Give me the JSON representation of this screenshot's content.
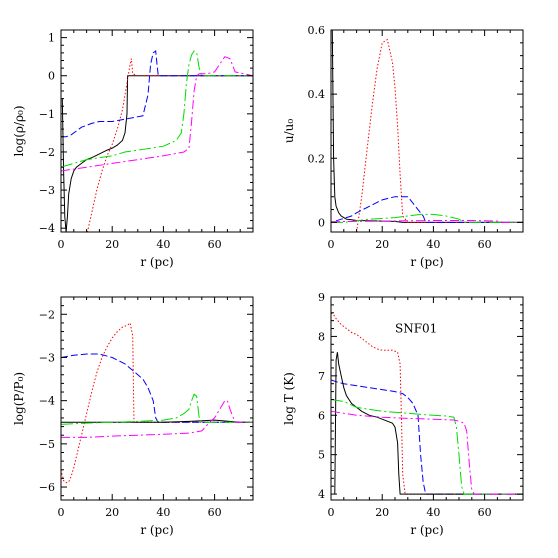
{
  "chart_data": [
    {
      "type": "line",
      "xlabel": "r (pc)",
      "ylabel": "log(ρ/ρ₀)",
      "xlim": [
        0,
        75
      ],
      "ylim": [
        -4.1,
        1.2
      ],
      "xticks": [
        0,
        20,
        40,
        60
      ],
      "xtick_labels": [
        "0",
        "20",
        "40",
        "60"
      ],
      "yticks": [
        -4,
        -3,
        -2,
        -1,
        0,
        1
      ],
      "ytick_labels": [
        "−4",
        "−3",
        "−2",
        "−1",
        "0",
        "1"
      ],
      "annotation": "",
      "series": [
        {
          "color": "#000000",
          "dash": "",
          "x": [
            0.5,
            1,
            1.5,
            2,
            2.5,
            3,
            4,
            5,
            6,
            8,
            10,
            12,
            15,
            18,
            20,
            22,
            24,
            25,
            25.8,
            26,
            30,
            40,
            50,
            60,
            75
          ],
          "y": [
            -0.6,
            -2.5,
            -3.7,
            -4.1,
            -3.7,
            -3.1,
            -2.7,
            -2.5,
            -2.4,
            -2.3,
            -2.2,
            -2.15,
            -2.05,
            -1.95,
            -1.9,
            -1.82,
            -1.7,
            -1.5,
            -1.0,
            0.0,
            0.0,
            0.0,
            0.0,
            0.0,
            0.0
          ]
        },
        {
          "color": "#ff0000",
          "dash": "1.5,2",
          "x": [
            10,
            12,
            14,
            16,
            18,
            20,
            22,
            24,
            25,
            26,
            27,
            27.5,
            28,
            30,
            40,
            60,
            75
          ],
          "y": [
            -4.2,
            -3.6,
            -3.0,
            -2.5,
            -2.1,
            -1.8,
            -1.4,
            -0.9,
            -0.5,
            -0.1,
            0.3,
            0.45,
            0.05,
            0.0,
            0.0,
            0.0,
            0.0
          ]
        },
        {
          "color": "#0000ff",
          "dash": "7,3",
          "x": [
            0,
            2,
            4,
            6,
            8,
            10,
            12,
            15,
            18,
            20,
            24,
            28,
            32,
            34,
            35,
            36,
            37,
            37.5,
            38,
            40,
            50,
            60,
            75
          ],
          "y": [
            -1.6,
            -1.6,
            -1.55,
            -1.45,
            -1.35,
            -1.3,
            -1.25,
            -1.2,
            -1.2,
            -1.2,
            -1.15,
            -1.1,
            -1.05,
            -0.5,
            0.3,
            0.6,
            0.65,
            0.3,
            0.0,
            0.0,
            0.0,
            0.0,
            0.0
          ]
        },
        {
          "color": "#00dd00",
          "dash": "12,3,2,3",
          "x": [
            0,
            5,
            10,
            15,
            20,
            25,
            30,
            35,
            40,
            45,
            47,
            48,
            49,
            50,
            51,
            52,
            53,
            54,
            55,
            60,
            75
          ],
          "y": [
            -2.4,
            -2.3,
            -2.2,
            -2.15,
            -2.1,
            -2.0,
            -1.95,
            -1.9,
            -1.85,
            -1.7,
            -1.5,
            -1.0,
            -0.2,
            0.3,
            0.55,
            0.65,
            0.6,
            0.2,
            0.0,
            0.0,
            0.0
          ]
        },
        {
          "color": "#ff00ff",
          "dash": "9,3,2,3",
          "x": [
            0,
            10,
            20,
            30,
            40,
            48,
            50,
            51,
            52,
            53,
            54,
            55,
            57,
            60,
            62,
            64,
            66,
            68,
            75
          ],
          "y": [
            -2.5,
            -2.4,
            -2.3,
            -2.2,
            -2.1,
            -2.0,
            -1.9,
            -1.2,
            -0.4,
            0.0,
            0.05,
            0.05,
            0.05,
            0.1,
            0.3,
            0.5,
            0.45,
            0.1,
            0.0
          ]
        }
      ]
    },
    {
      "type": "line",
      "xlabel": "r (pc)",
      "ylabel": "u/u₀",
      "xlim": [
        0,
        75
      ],
      "ylim": [
        -0.03,
        0.6
      ],
      "xticks": [
        0,
        20,
        40,
        60
      ],
      "xtick_labels": [
        "0",
        "20",
        "40",
        "60"
      ],
      "yticks": [
        0,
        0.2,
        0.4,
        0.6
      ],
      "ytick_labels": [
        "0",
        "0.2",
        "0.4",
        "0.6"
      ],
      "annotation": "",
      "series": [
        {
          "color": "#000000",
          "dash": "",
          "x": [
            0.5,
            1,
            1.5,
            2,
            2.5,
            3,
            4,
            5,
            6,
            8,
            10,
            15,
            20,
            25,
            26,
            28,
            30,
            40,
            50,
            60,
            75
          ],
          "y": [
            0.6,
            0.2,
            0.08,
            0.05,
            0.04,
            0.03,
            0.02,
            0.015,
            0.01,
            0.008,
            0.006,
            0.005,
            0.004,
            0.003,
            0.002,
            0.0,
            0.0,
            0.0,
            0.0,
            0.0,
            0.0
          ]
        },
        {
          "color": "#ff0000",
          "dash": "1.5,2",
          "x": [
            10,
            12,
            14,
            16,
            18,
            20,
            22,
            24,
            25,
            26,
            27,
            28,
            30,
            40,
            75
          ],
          "y": [
            -0.03,
            0.08,
            0.22,
            0.36,
            0.48,
            0.56,
            0.57,
            0.5,
            0.42,
            0.3,
            0.15,
            0.02,
            0.0,
            0.0,
            0.0
          ]
        },
        {
          "color": "#0000ff",
          "dash": "7,3",
          "x": [
            2,
            4,
            6,
            8,
            10,
            15,
            20,
            25,
            30,
            32,
            34,
            36,
            37,
            38,
            40,
            50,
            75
          ],
          "y": [
            0.005,
            0.01,
            0.015,
            0.02,
            0.03,
            0.05,
            0.07,
            0.08,
            0.08,
            0.06,
            0.04,
            0.02,
            0.0,
            0.0,
            0.0,
            0.0,
            0.0
          ]
        },
        {
          "color": "#00dd00",
          "dash": "12,3,2,3",
          "x": [
            0,
            5,
            10,
            15,
            20,
            25,
            30,
            35,
            40,
            45,
            50,
            52,
            54,
            56,
            60,
            75
          ],
          "y": [
            0.0,
            0.0,
            0.005,
            0.01,
            0.012,
            0.015,
            0.02,
            0.025,
            0.025,
            0.02,
            0.01,
            0.0,
            0.0,
            0.0,
            0.0,
            0.0
          ]
        },
        {
          "color": "#ff00ff",
          "dash": "9,3,2,3",
          "x": [
            0,
            10,
            20,
            30,
            40,
            50,
            55,
            60,
            65,
            67,
            70,
            75
          ],
          "y": [
            0.002,
            0.003,
            0.004,
            0.005,
            0.006,
            0.006,
            0.006,
            0.005,
            0.004,
            0.0,
            0.0,
            0.0
          ]
        }
      ]
    },
    {
      "type": "line",
      "xlabel": "r (pc)",
      "ylabel": "log(P/P₀)",
      "xlim": [
        0,
        75
      ],
      "ylim": [
        -6.3,
        -1.6
      ],
      "xticks": [
        0,
        20,
        40,
        60
      ],
      "xtick_labels": [
        "0",
        "20",
        "40",
        "60"
      ],
      "yticks": [
        -6,
        -5,
        -4,
        -3,
        -2
      ],
      "ytick_labels": [
        "−6",
        "−5",
        "−4",
        "−3",
        "−2"
      ],
      "annotation": "",
      "series": [
        {
          "color": "#ff0000",
          "dash": "1.5,2",
          "x": [
            0,
            1,
            2,
            3,
            4,
            5,
            6,
            8,
            10,
            12,
            14,
            16,
            18,
            20,
            22,
            24,
            26,
            27,
            28,
            28.5,
            30,
            40,
            60,
            75
          ],
          "y": [
            -5.6,
            -5.85,
            -5.9,
            -5.88,
            -5.75,
            -5.55,
            -5.3,
            -4.8,
            -4.3,
            -3.8,
            -3.35,
            -3.0,
            -2.75,
            -2.55,
            -2.4,
            -2.3,
            -2.25,
            -2.2,
            -2.5,
            -4.5,
            -4.5,
            -4.5,
            -4.5,
            -4.5
          ]
        },
        {
          "color": "#0000ff",
          "dash": "7,3",
          "x": [
            0,
            2,
            5,
            10,
            15,
            20,
            25,
            28,
            30,
            32,
            34,
            36,
            37,
            38,
            40,
            50,
            60,
            75
          ],
          "y": [
            -3.0,
            -2.98,
            -2.95,
            -2.92,
            -2.92,
            -3.0,
            -3.15,
            -3.3,
            -3.4,
            -3.5,
            -3.7,
            -4.0,
            -4.4,
            -4.5,
            -4.5,
            -4.5,
            -4.5,
            -4.5
          ]
        },
        {
          "color": "#000000",
          "dash": "",
          "x": [
            0,
            10,
            20,
            30,
            40,
            50,
            60,
            70,
            75
          ],
          "y": [
            -4.5,
            -4.5,
            -4.5,
            -4.5,
            -4.5,
            -4.48,
            -4.45,
            -4.5,
            -4.5
          ]
        },
        {
          "color": "#00dd00",
          "dash": "12,3,2,3",
          "x": [
            0,
            10,
            20,
            30,
            40,
            45,
            48,
            50,
            51,
            52,
            53,
            54,
            55,
            60,
            75
          ],
          "y": [
            -4.55,
            -4.52,
            -4.5,
            -4.48,
            -4.45,
            -4.4,
            -4.3,
            -4.2,
            -4.0,
            -3.85,
            -3.9,
            -4.4,
            -4.5,
            -4.5,
            -4.5
          ]
        },
        {
          "color": "#ff00ff",
          "dash": "9,3,2,3",
          "x": [
            0,
            10,
            20,
            30,
            40,
            50,
            55,
            58,
            60,
            62,
            64,
            65,
            66,
            68,
            70,
            75
          ],
          "y": [
            -4.85,
            -4.85,
            -4.82,
            -4.8,
            -4.78,
            -4.75,
            -4.7,
            -4.5,
            -4.4,
            -4.2,
            -4.0,
            -4.0,
            -4.2,
            -4.5,
            -4.5,
            -4.5
          ]
        }
      ]
    },
    {
      "type": "line",
      "xlabel": "r (pc)",
      "ylabel": "log T (K)",
      "xlim": [
        0,
        75
      ],
      "ylim": [
        3.85,
        9
      ],
      "xticks": [
        0,
        20,
        40,
        60
      ],
      "xtick_labels": [
        "0",
        "20",
        "40",
        "60"
      ],
      "yticks": [
        4,
        5,
        6,
        7,
        8,
        9
      ],
      "ytick_labels": [
        "4",
        "5",
        "6",
        "7",
        "8",
        "9"
      ],
      "annotation": "SNF01",
      "series": [
        {
          "color": "#ff0000",
          "dash": "1.5,2",
          "x": [
            0,
            1,
            2,
            4,
            6,
            8,
            10,
            12,
            14,
            16,
            18,
            20,
            22,
            24,
            26,
            27,
            27.5,
            28,
            29,
            30,
            40,
            75
          ],
          "y": [
            8.6,
            8.55,
            8.45,
            8.3,
            8.2,
            8.1,
            8.05,
            7.95,
            7.85,
            7.75,
            7.68,
            7.65,
            7.65,
            7.65,
            7.6,
            7.3,
            6.0,
            4.5,
            4.0,
            4.0,
            4.0,
            4.0
          ]
        },
        {
          "color": "#0000ff",
          "dash": "7,3",
          "x": [
            0,
            2,
            5,
            10,
            15,
            20,
            25,
            28,
            30,
            32,
            34,
            35,
            36,
            37,
            38,
            40,
            75
          ],
          "y": [
            6.9,
            6.85,
            6.8,
            6.75,
            6.7,
            6.65,
            6.6,
            6.55,
            6.45,
            6.3,
            6.0,
            5.0,
            4.3,
            4.0,
            4.0,
            4.0,
            4.0
          ]
        },
        {
          "color": "#000000",
          "dash": "",
          "x": [
            1.5,
            2,
            2.5,
            3,
            4,
            5,
            6,
            8,
            10,
            12,
            15,
            18,
            20,
            22,
            24,
            25,
            26,
            26.5,
            27,
            30,
            40,
            50,
            60,
            75
          ],
          "y": [
            4.0,
            7.4,
            7.6,
            7.3,
            7.0,
            6.7,
            6.5,
            6.3,
            6.2,
            6.1,
            6.0,
            5.95,
            5.9,
            5.85,
            5.8,
            5.7,
            5.3,
            4.5,
            4.0,
            4.0,
            4.0,
            4.0,
            4.0,
            4.0
          ]
        },
        {
          "color": "#00dd00",
          "dash": "12,3,2,3",
          "x": [
            0,
            5,
            10,
            20,
            30,
            40,
            45,
            48,
            49,
            50,
            51,
            52,
            75
          ],
          "y": [
            6.4,
            6.35,
            6.2,
            6.1,
            6.05,
            6.0,
            5.98,
            5.95,
            5.7,
            5.0,
            4.2,
            4.0,
            4.0
          ]
        },
        {
          "color": "#ff00ff",
          "dash": "9,3,2,3",
          "x": [
            0,
            5,
            10,
            20,
            30,
            40,
            48,
            50,
            52,
            53,
            54,
            55,
            56,
            75
          ],
          "y": [
            6.1,
            6.05,
            6.0,
            5.95,
            5.92,
            5.9,
            5.88,
            5.85,
            5.8,
            5.6,
            4.8,
            4.1,
            4.0,
            4.0
          ]
        }
      ]
    }
  ]
}
